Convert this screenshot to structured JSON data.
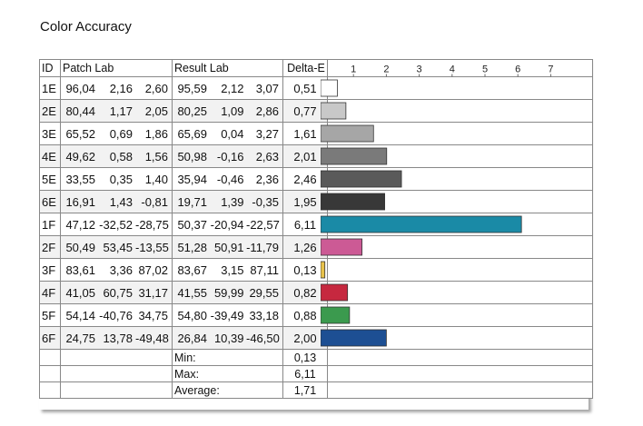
{
  "title": "Color Accuracy",
  "chart_data": {
    "type": "bar",
    "orientation": "horizontal",
    "title": "Color Accuracy",
    "columns": [
      "ID",
      "Patch Lab",
      "Result Lab",
      "Delta-E"
    ],
    "xticks": [
      1,
      2,
      3,
      4,
      5,
      6,
      7
    ],
    "xlim": [
      0,
      8
    ],
    "rows": [
      {
        "id": "1E",
        "patch": [
          "96,04",
          "2,16",
          "2,60"
        ],
        "result": [
          "95,59",
          "2,12",
          "3,07"
        ],
        "de": "0,51",
        "value": 0.51,
        "color": "#ffffff"
      },
      {
        "id": "2E",
        "patch": [
          "80,44",
          "1,17",
          "2,05"
        ],
        "result": [
          "80,25",
          "1,09",
          "2,86"
        ],
        "de": "0,77",
        "value": 0.77,
        "color": "#c8c8c8"
      },
      {
        "id": "3E",
        "patch": [
          "65,52",
          "0,69",
          "1,86"
        ],
        "result": [
          "65,69",
          "0,04",
          "3,27"
        ],
        "de": "1,61",
        "value": 1.61,
        "color": "#a6a6a6"
      },
      {
        "id": "4E",
        "patch": [
          "49,62",
          "0,58",
          "1,56"
        ],
        "result": [
          "50,98",
          "-0,16",
          "2,63"
        ],
        "de": "2,01",
        "value": 2.01,
        "color": "#7a7a7a"
      },
      {
        "id": "5E",
        "patch": [
          "33,55",
          "0,35",
          "1,40"
        ],
        "result": [
          "35,94",
          "-0,46",
          "2,36"
        ],
        "de": "2,46",
        "value": 2.46,
        "color": "#5a5a5a"
      },
      {
        "id": "6E",
        "patch": [
          "16,91",
          "1,43",
          "-0,81"
        ],
        "result": [
          "19,71",
          "1,39",
          "-0,35"
        ],
        "de": "1,95",
        "value": 1.95,
        "color": "#383838"
      },
      {
        "id": "1F",
        "patch": [
          "47,12",
          "-32,52",
          "-28,75"
        ],
        "result": [
          "50,37",
          "-20,94",
          "-22,57"
        ],
        "de": "6,11",
        "value": 6.11,
        "color": "#1a8aa6"
      },
      {
        "id": "2F",
        "patch": [
          "50,49",
          "53,45",
          "-13,55"
        ],
        "result": [
          "51,28",
          "50,91",
          "-11,79"
        ],
        "de": "1,26",
        "value": 1.26,
        "color": "#cc5a95"
      },
      {
        "id": "3F",
        "patch": [
          "83,61",
          "3,36",
          "87,02"
        ],
        "result": [
          "83,67",
          "3,15",
          "87,11"
        ],
        "de": "0,13",
        "value": 0.13,
        "color": "#e8c24a"
      },
      {
        "id": "4F",
        "patch": [
          "41,05",
          "60,75",
          "31,17"
        ],
        "result": [
          "41,55",
          "59,99",
          "29,55"
        ],
        "de": "0,82",
        "value": 0.82,
        "color": "#c6283f"
      },
      {
        "id": "5F",
        "patch": [
          "54,14",
          "-40,76",
          "34,75"
        ],
        "result": [
          "54,80",
          "-39,49",
          "33,18"
        ],
        "de": "0,88",
        "value": 0.88,
        "color": "#3b9a4e"
      },
      {
        "id": "6F",
        "patch": [
          "24,75",
          "13,78",
          "-49,48"
        ],
        "result": [
          "26,84",
          "10,39",
          "-46,50"
        ],
        "de": "2,00",
        "value": 2.0,
        "color": "#1d4f93"
      }
    ],
    "summary": [
      {
        "label": "Min:",
        "value": "0,13"
      },
      {
        "label": "Max:",
        "value": "6,11"
      },
      {
        "label": "Average:",
        "value": "1,71"
      }
    ],
    "grid": false
  }
}
